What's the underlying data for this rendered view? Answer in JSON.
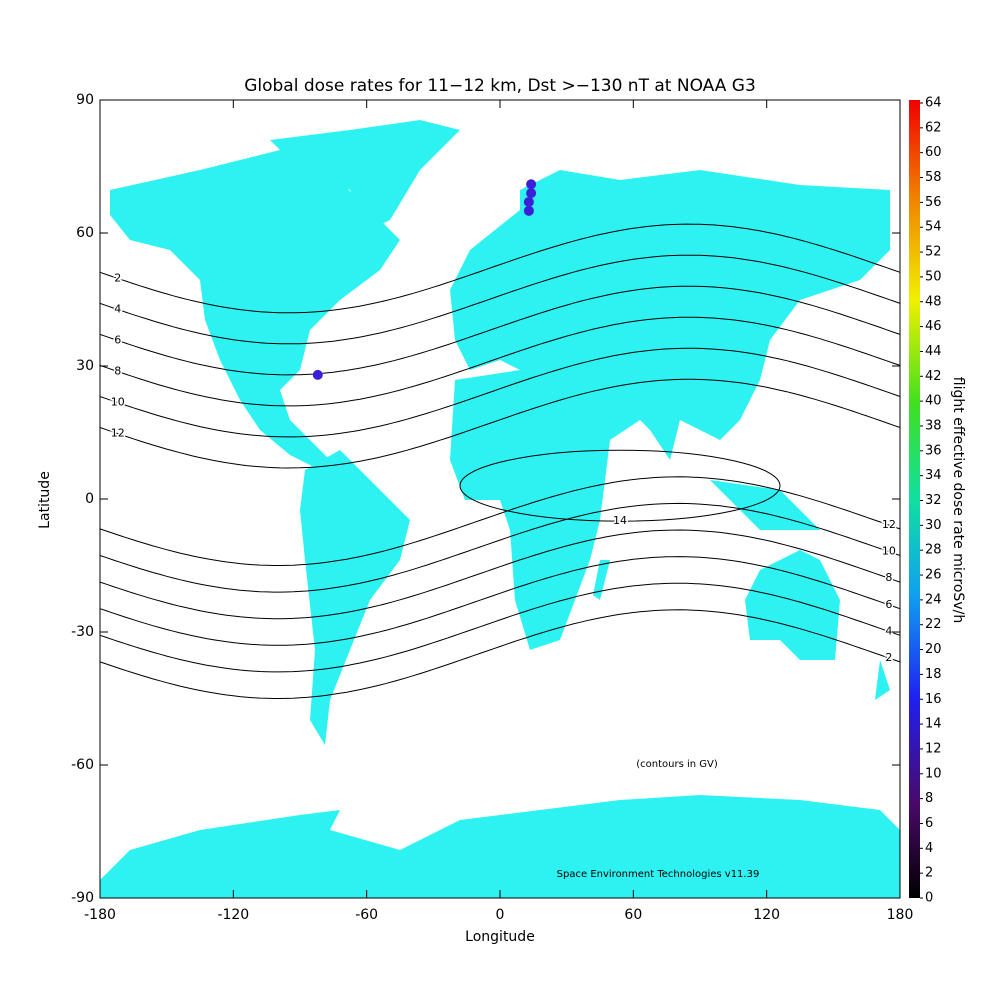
{
  "chart_data": {
    "type": "map",
    "title": "Global dose rates for 11−12 km, Dst >−130 nT at NOAA G3",
    "x_label": "Longitude",
    "y_label": "Latitude",
    "xlim": [
      -180,
      180
    ],
    "ylim": [
      -90,
      90
    ],
    "xticks": [
      -180,
      -120,
      -60,
      0,
      60,
      120,
      180
    ],
    "yticks": [
      -90,
      -60,
      -30,
      0,
      30,
      60,
      90
    ],
    "land_color": "#2ef2f2",
    "colorbar": {
      "label": "flight effective dose rate microSv/h",
      "lim": [
        0,
        64
      ],
      "ticks": [
        0,
        2,
        4,
        6,
        8,
        10,
        12,
        14,
        16,
        18,
        20,
        22,
        24,
        26,
        28,
        30,
        32,
        34,
        36,
        38,
        40,
        42,
        44,
        46,
        48,
        50,
        52,
        54,
        56,
        58,
        60,
        62,
        64
      ]
    },
    "contours": {
      "note": "(contours in GV)",
      "levels": [
        2,
        4,
        6,
        8,
        10,
        12,
        14
      ]
    },
    "points": {
      "color": "#3a20d8",
      "x": [
        -82,
        13,
        13,
        14,
        14
      ],
      "y": [
        28,
        65,
        67,
        69,
        71
      ],
      "values": [
        14,
        16,
        16,
        15,
        15
      ]
    },
    "credit": "Space Environment Technologies v11.39"
  }
}
